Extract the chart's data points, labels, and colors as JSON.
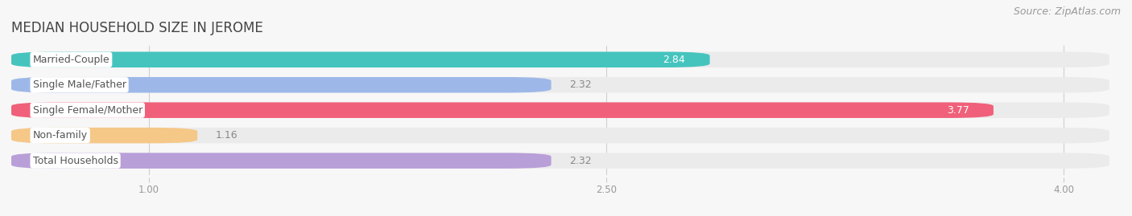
{
  "title": "MEDIAN HOUSEHOLD SIZE IN JEROME",
  "source": "Source: ZipAtlas.com",
  "categories": [
    "Married-Couple",
    "Single Male/Father",
    "Single Female/Mother",
    "Non-family",
    "Total Households"
  ],
  "values": [
    2.84,
    2.32,
    3.77,
    1.16,
    2.32
  ],
  "bar_colors": [
    "#45c4be",
    "#9db8e8",
    "#f0607a",
    "#f5c888",
    "#b89fd8"
  ],
  "bar_bg_colors": [
    "#ebebeb",
    "#ebebeb",
    "#ebebeb",
    "#ebebeb",
    "#ebebeb"
  ],
  "value_inside": [
    true,
    false,
    true,
    false,
    false
  ],
  "value_colors_inside": [
    "white",
    "#888888",
    "white",
    "#888888",
    "#888888"
  ],
  "xlim": [
    0.55,
    4.15
  ],
  "xticks": [
    1.0,
    2.5,
    4.0
  ],
  "background_color": "#f7f7f7",
  "bar_height": 0.62,
  "bar_gap": 0.38,
  "label_fontsize": 9,
  "value_fontsize": 9,
  "title_fontsize": 12,
  "source_fontsize": 9
}
